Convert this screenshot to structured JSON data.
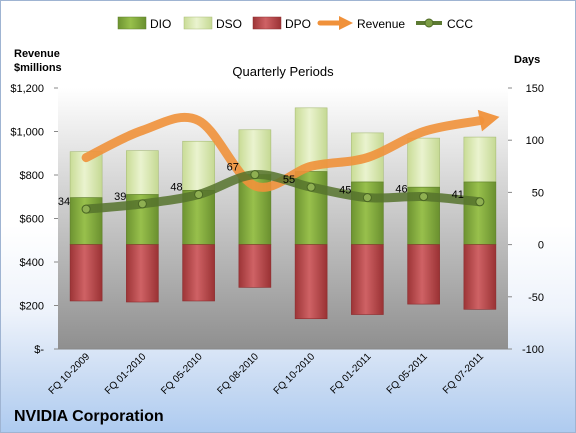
{
  "company": "NVIDIA Corporation",
  "chart_data": {
    "type": "bar",
    "title": "Quarterly Periods",
    "ylabel_left": [
      "Revenue",
      "$millions"
    ],
    "ylabel_right": "Days",
    "categories": [
      "FQ 10-2009",
      "FQ 01-2010",
      "FQ 05-2010",
      "FQ 08-2010",
      "FQ 10-2010",
      "FQ 01-2011",
      "FQ 05-2011",
      "FQ 07-2011"
    ],
    "left_axis": {
      "ylim": [
        0,
        1200
      ],
      "ticks": [
        0,
        200,
        400,
        600,
        800,
        1000,
        1200
      ],
      "tick_labels": [
        "$-",
        "$200",
        "$400",
        "$600",
        "$800",
        "$1,000",
        "$1,200"
      ]
    },
    "right_axis": {
      "ylim": [
        -100,
        150
      ],
      "ticks": [
        -100,
        -50,
        0,
        50,
        100,
        150
      ],
      "tick_labels": [
        "-100",
        "-50",
        "0",
        "50",
        "100",
        "150"
      ]
    },
    "series": [
      {
        "name": "DIO",
        "axis": "right",
        "kind": "stacked-bar",
        "values": [
          45,
          48,
          52,
          67,
          70,
          60,
          55,
          60
        ]
      },
      {
        "name": "DSO",
        "axis": "right",
        "kind": "stacked-bar",
        "values": [
          44,
          42,
          47,
          43,
          61,
          47,
          47,
          43
        ]
      },
      {
        "name": "DPO",
        "axis": "right",
        "kind": "negative-bar",
        "values": [
          -54,
          -55,
          -54,
          -41,
          -71,
          -67,
          -57,
          -62
        ]
      },
      {
        "name": "Revenue",
        "axis": "left",
        "kind": "arrow-line",
        "values": [
          880,
          1005,
          1050,
          750,
          840,
          880,
          1000,
          1050
        ]
      },
      {
        "name": "CCC",
        "axis": "right",
        "kind": "line-markers",
        "values": [
          34,
          39,
          48,
          67,
          55,
          45,
          46,
          41
        ]
      }
    ],
    "ccc_labels": [
      "34",
      "39",
      "48",
      "67",
      "55",
      "45",
      "46",
      "41"
    ],
    "legend_position": "top",
    "colors": {
      "DIO": "#7fa53a",
      "DSO": "#d7e7a9",
      "DPO": "#b5484a",
      "Revenue": "#f0913a",
      "CCC": "#5c7a32",
      "plot_top": "#ffffff",
      "plot_bottom": "#959595"
    }
  }
}
